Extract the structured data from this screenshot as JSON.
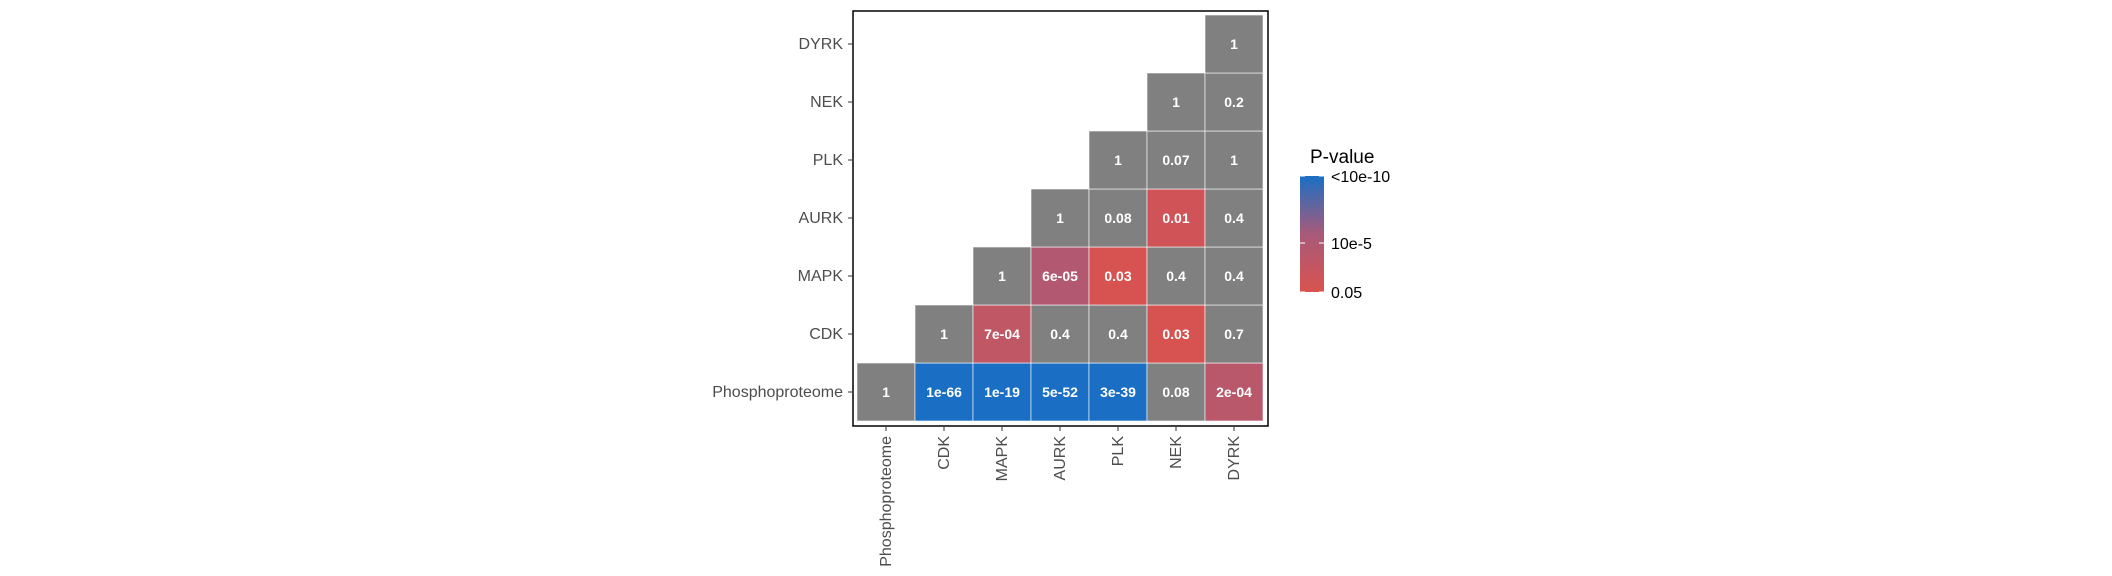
{
  "chart_data": {
    "type": "heatmap",
    "title": "",
    "xlabel": "",
    "ylabel": "",
    "x_categories": [
      "Phosphoproteome",
      "CDK",
      "MAPK",
      "AURK",
      "PLK",
      "NEK",
      "DYRK"
    ],
    "y_categories": [
      "Phosphoproteome",
      "CDK",
      "MAPK",
      "AURK",
      "PLK",
      "NEK",
      "DYRK"
    ],
    "cells": [
      {
        "x": "Phosphoproteome",
        "y": "Phosphoproteome",
        "label": "1",
        "p": 1
      },
      {
        "x": "CDK",
        "y": "Phosphoproteome",
        "label": "1e-66",
        "p": 1e-66
      },
      {
        "x": "MAPK",
        "y": "Phosphoproteome",
        "label": "1e-19",
        "p": 1e-19
      },
      {
        "x": "AURK",
        "y": "Phosphoproteome",
        "label": "5e-52",
        "p": 5e-52
      },
      {
        "x": "PLK",
        "y": "Phosphoproteome",
        "label": "3e-39",
        "p": 3e-39
      },
      {
        "x": "NEK",
        "y": "Phosphoproteome",
        "label": "0.08",
        "p": 0.08
      },
      {
        "x": "DYRK",
        "y": "Phosphoproteome",
        "label": "2e-04",
        "p": 0.0002
      },
      {
        "x": "CDK",
        "y": "CDK",
        "label": "1",
        "p": 1
      },
      {
        "x": "MAPK",
        "y": "CDK",
        "label": "7e-04",
        "p": 0.0007
      },
      {
        "x": "AURK",
        "y": "CDK",
        "label": "0.4",
        "p": 0.4
      },
      {
        "x": "PLK",
        "y": "CDK",
        "label": "0.4",
        "p": 0.4
      },
      {
        "x": "NEK",
        "y": "CDK",
        "label": "0.03",
        "p": 0.03
      },
      {
        "x": "DYRK",
        "y": "CDK",
        "label": "0.7",
        "p": 0.7
      },
      {
        "x": "MAPK",
        "y": "MAPK",
        "label": "1",
        "p": 1
      },
      {
        "x": "AURK",
        "y": "MAPK",
        "label": "6e-05",
        "p": 6e-05
      },
      {
        "x": "PLK",
        "y": "MAPK",
        "label": "0.03",
        "p": 0.03
      },
      {
        "x": "NEK",
        "y": "MAPK",
        "label": "0.4",
        "p": 0.4
      },
      {
        "x": "DYRK",
        "y": "MAPK",
        "label": "0.4",
        "p": 0.4
      },
      {
        "x": "AURK",
        "y": "AURK",
        "label": "1",
        "p": 1
      },
      {
        "x": "PLK",
        "y": "AURK",
        "label": "0.08",
        "p": 0.08
      },
      {
        "x": "NEK",
        "y": "AURK",
        "label": "0.01",
        "p": 0.01
      },
      {
        "x": "DYRK",
        "y": "AURK",
        "label": "0.4",
        "p": 0.4
      },
      {
        "x": "PLK",
        "y": "PLK",
        "label": "1",
        "p": 1
      },
      {
        "x": "NEK",
        "y": "PLK",
        "label": "0.07",
        "p": 0.07
      },
      {
        "x": "DYRK",
        "y": "PLK",
        "label": "1",
        "p": 1
      },
      {
        "x": "NEK",
        "y": "NEK",
        "label": "1",
        "p": 1
      },
      {
        "x": "DYRK",
        "y": "NEK",
        "label": "0.2",
        "p": 0.2
      },
      {
        "x": "DYRK",
        "y": "DYRK",
        "label": "1",
        "p": 1
      }
    ],
    "legend": {
      "title": "P-value",
      "placement": "right",
      "labels": [
        "<10e-10",
        "10e-5",
        "0.05"
      ],
      "colors": {
        "low_p": "#1a6fc4",
        "mid_p": "#a85a7a",
        "high_p": "#d9534f",
        "not_significant": "#808080"
      }
    },
    "grid": false
  }
}
